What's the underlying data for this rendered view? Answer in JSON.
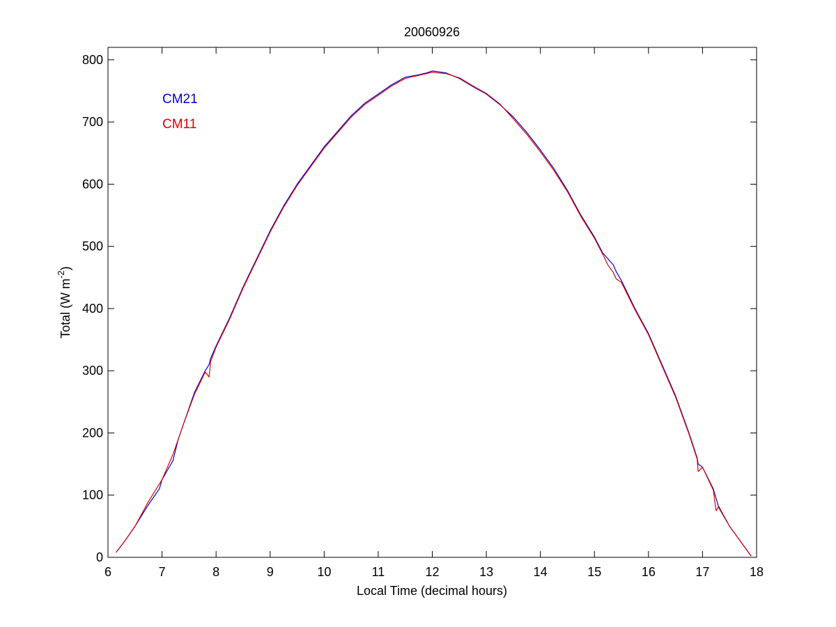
{
  "chart_data": {
    "type": "line",
    "title": "20060926",
    "xlabel": "Local Time (decimal hours)",
    "ylabel": "Total (W m",
    "ylabel_sup": "-2",
    "ylabel_suffix": ")",
    "xlim": [
      6,
      18
    ],
    "ylim": [
      0,
      820
    ],
    "xticks": [
      6,
      7,
      8,
      9,
      10,
      11,
      12,
      13,
      14,
      15,
      16,
      17,
      18
    ],
    "yticks": [
      0,
      100,
      200,
      300,
      400,
      500,
      600,
      700,
      800
    ],
    "grid": false,
    "legend_position": "top-left",
    "series": [
      {
        "name": "CM21",
        "color": "#0000cc",
        "x": [
          6.15,
          6.3,
          6.5,
          6.75,
          6.95,
          7.0,
          7.1,
          7.2,
          7.3,
          7.4,
          7.6,
          7.8,
          7.87,
          7.9,
          8.0,
          8.25,
          8.5,
          8.75,
          9.0,
          9.25,
          9.5,
          9.75,
          10.0,
          10.25,
          10.5,
          10.75,
          11.0,
          11.25,
          11.5,
          11.75,
          11.9,
          12.0,
          12.1,
          12.25,
          12.5,
          12.75,
          13.0,
          13.25,
          13.5,
          13.75,
          14.0,
          14.25,
          14.5,
          14.75,
          15.0,
          15.15,
          15.25,
          15.35,
          15.4,
          15.5,
          15.75,
          16.0,
          16.25,
          16.5,
          16.75,
          16.9,
          16.92,
          17.0,
          17.2,
          17.25,
          17.3,
          17.5,
          17.75,
          17.9
        ],
        "y": [
          8,
          25,
          50,
          85,
          110,
          125,
          140,
          155,
          190,
          215,
          265,
          300,
          310,
          320,
          340,
          385,
          435,
          480,
          525,
          565,
          600,
          630,
          660,
          685,
          710,
          730,
          745,
          760,
          772,
          776,
          779,
          782,
          781,
          779,
          770,
          757,
          745,
          728,
          708,
          683,
          655,
          625,
          590,
          550,
          515,
          490,
          480,
          470,
          460,
          445,
          400,
          360,
          310,
          260,
          200,
          160,
          150,
          145,
          110,
          95,
          80,
          50,
          20,
          2
        ]
      },
      {
        "name": "CM11",
        "color": "#dd0000",
        "x": [
          6.15,
          6.3,
          6.5,
          6.75,
          7.0,
          7.1,
          7.2,
          7.3,
          7.4,
          7.6,
          7.8,
          7.87,
          7.9,
          8.0,
          8.25,
          8.5,
          8.75,
          9.0,
          9.25,
          9.5,
          9.75,
          10.0,
          10.25,
          10.5,
          10.75,
          11.0,
          11.25,
          11.5,
          11.75,
          11.9,
          12.0,
          12.1,
          12.25,
          12.5,
          12.75,
          13.0,
          13.25,
          13.5,
          13.75,
          14.0,
          14.25,
          14.5,
          14.75,
          15.0,
          15.15,
          15.25,
          15.35,
          15.4,
          15.5,
          15.75,
          16.0,
          16.25,
          16.5,
          16.75,
          16.9,
          16.92,
          17.0,
          17.2,
          17.25,
          17.3,
          17.5,
          17.75,
          17.9
        ],
        "y": [
          8,
          25,
          50,
          90,
          125,
          145,
          165,
          190,
          215,
          262,
          298,
          290,
          315,
          338,
          383,
          433,
          478,
          523,
          563,
          598,
          628,
          658,
          683,
          708,
          728,
          743,
          758,
          770,
          775,
          778,
          780,
          779,
          778,
          771,
          758,
          746,
          729,
          705,
          680,
          652,
          622,
          588,
          548,
          513,
          488,
          470,
          458,
          448,
          442,
          398,
          358,
          308,
          258,
          198,
          158,
          138,
          145,
          108,
          75,
          82,
          50,
          20,
          2
        ]
      }
    ]
  }
}
